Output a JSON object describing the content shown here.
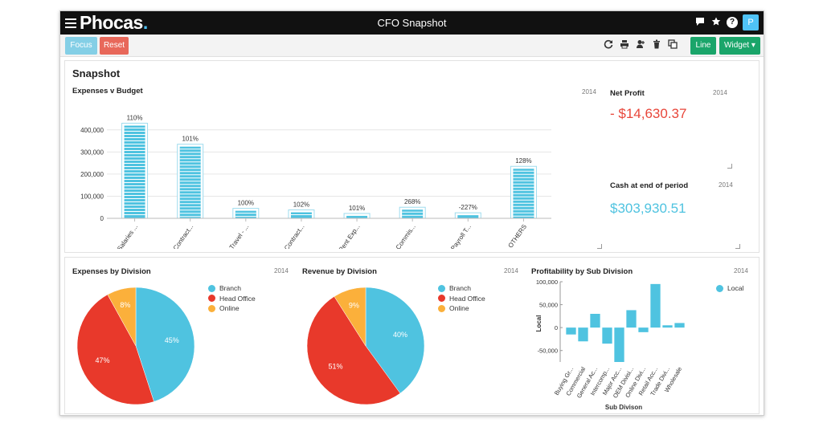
{
  "app": {
    "logo_text": "Phocas",
    "logo_dot": ".",
    "title": "CFO Snapshot",
    "avatar_initial": "P",
    "top_icons": [
      "chat-icon",
      "star-icon",
      "help-icon"
    ]
  },
  "toolbar": {
    "focus_label": "Focus",
    "reset_label": "Reset",
    "line_label": "Line",
    "widget_label": "Widget ▾",
    "tool_icons": [
      "refresh-icon",
      "print-icon",
      "share-icon",
      "delete-icon",
      "copy-icon"
    ]
  },
  "snapshot": {
    "title": "Snapshot",
    "expenses_v_budget": {
      "title": "Expenses v Budget",
      "year": "2014"
    },
    "net_profit": {
      "title": "Net Profit",
      "year": "2014",
      "value": "- $14,630.37"
    },
    "cash": {
      "title": "Cash at end of period",
      "year": "2014",
      "value": "$303,930.51"
    }
  },
  "bottom": {
    "expenses_by_division": {
      "title": "Expenses by Division",
      "year": "2014"
    },
    "revenue_by_division": {
      "title": "Revenue by Division",
      "year": "2014"
    },
    "profitability": {
      "title": "Profitability by Sub Division",
      "year": "2014"
    }
  },
  "colors": {
    "accent_blue": "#4fc3e0",
    "red": "#e8392b",
    "orange": "#fbb03b",
    "green": "#1aa56a"
  },
  "chart_data": [
    {
      "type": "bar",
      "title": "Expenses v Budget",
      "categories": [
        "Salaries ...",
        "Contract...",
        "Travel - ...",
        "Contract...",
        "Rent Exp...",
        "Commis...",
        "Payroll T...",
        "OTHERS"
      ],
      "values": [
        430000,
        335000,
        45000,
        38000,
        22000,
        50000,
        25000,
        235000
      ],
      "data_labels": [
        "110%",
        "101%",
        "100%",
        "102%",
        "101%",
        "268%",
        "-227%",
        "128%"
      ],
      "y_ticks": [
        "0",
        "100,000",
        "200,000",
        "300,000",
        "400,000"
      ],
      "ylim": [
        0,
        450000
      ],
      "grid": true
    },
    {
      "type": "pie",
      "title": "Expenses by Division",
      "labels": [
        "Branch",
        "Head Office",
        "Online"
      ],
      "values": [
        45,
        47,
        8
      ],
      "value_labels": [
        "45%",
        "47%",
        "8%"
      ],
      "legend": "right"
    },
    {
      "type": "pie",
      "title": "Revenue by Division",
      "labels": [
        "Branch",
        "Head Office",
        "Online"
      ],
      "values": [
        40,
        51,
        9
      ],
      "value_labels": [
        "40%",
        "51%",
        "9%"
      ],
      "legend": "right"
    },
    {
      "type": "bar",
      "title": "Profitability by Sub Division",
      "xlabel": "Sub Divison",
      "ylabel": "Local",
      "series": [
        {
          "name": "Local",
          "values": [
            -15000,
            -30000,
            30000,
            -35000,
            -75000,
            38000,
            -10000,
            95000,
            5000,
            10000
          ]
        }
      ],
      "categories": [
        "Buying Gr...",
        "Commercial",
        "General Ac...",
        "Intercomp...",
        "Major Acc...",
        "OEM Divisi...",
        "Online Divi...",
        "Retail Acc...",
        "Trade Divi...",
        "Wholesale"
      ],
      "y_ticks": [
        "-50,000",
        "0",
        "50,000",
        "100,000"
      ],
      "ylim": [
        -75000,
        100000
      ],
      "legend": "top-right"
    }
  ]
}
